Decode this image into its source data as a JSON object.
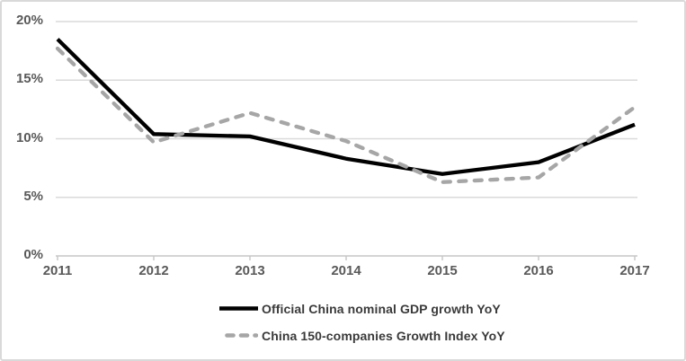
{
  "chart_data": {
    "type": "line",
    "title": "",
    "xlabel": "",
    "ylabel": "",
    "categories": [
      "2011",
      "2012",
      "2013",
      "2014",
      "2015",
      "2016",
      "2017"
    ],
    "series": [
      {
        "name": "Official China nominal GDP growth YoY",
        "values": [
          18.5,
          10.4,
          10.2,
          8.3,
          7.0,
          8.0,
          11.2
        ],
        "color": "#000000",
        "dash": "solid"
      },
      {
        "name": "China 150-companies Growth Index YoY",
        "values": [
          17.7,
          9.7,
          12.2,
          9.8,
          6.3,
          6.7,
          12.7
        ],
        "color": "#a6a6a6",
        "dash": "dashed"
      }
    ],
    "ylim": [
      0,
      20
    ],
    "ytick_step": 5,
    "ytick_labels": [
      "0%",
      "5%",
      "10%",
      "15%",
      "20%"
    ],
    "grid": true,
    "legend_position": "bottom"
  },
  "theme": {
    "grid_color": "#dadada",
    "axis_color": "#c6c6c6",
    "tick_label_color": "#595959",
    "legend_text_color": "#3a3a3a",
    "background": "#ffffff"
  }
}
